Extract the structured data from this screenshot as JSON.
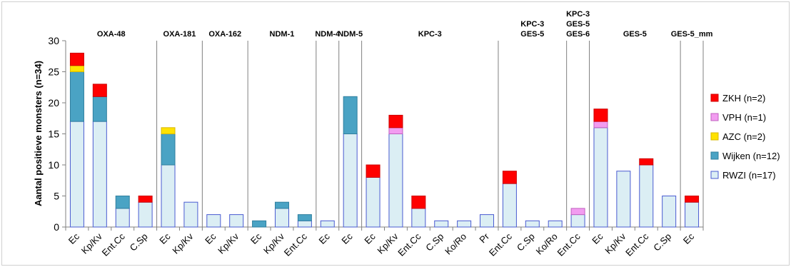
{
  "chart_data": {
    "type": "bar",
    "stacked": true,
    "ylabel": "Aantal positieve monsters (n=34)",
    "ylim": [
      0,
      30
    ],
    "yticks": [
      0,
      5,
      10,
      15,
      20,
      25,
      30
    ],
    "grid": false,
    "legend_position": "right",
    "groups": [
      {
        "label": [
          "OXA-48"
        ],
        "categories": [
          "Ec",
          "Kp/Kv",
          "Ent.Cc",
          "C.Sp"
        ]
      },
      {
        "label": [
          "OXA-181"
        ],
        "categories": [
          "Ec",
          "Kp/Kv"
        ]
      },
      {
        "label": [
          "OXA-162"
        ],
        "categories": [
          "Ec",
          "Kp/Kv"
        ]
      },
      {
        "label": [
          "NDM-1"
        ],
        "categories": [
          "Ec",
          "Kp/Kv",
          "Ent.Cc"
        ]
      },
      {
        "label": [
          "NDM-4"
        ],
        "categories": [
          "Ec"
        ]
      },
      {
        "label": [
          "NDM-5"
        ],
        "categories": [
          "Ec"
        ]
      },
      {
        "label": [
          "KPC-3"
        ],
        "categories": [
          "Ec",
          "Kp/Kv",
          "Ent.Cc",
          "C.Sp",
          "Ko/Ro",
          "Pr"
        ]
      },
      {
        "label": [
          "KPC-3",
          "GES-5"
        ],
        "categories": [
          "Ent.Cc",
          "C.Sp",
          "Ko/Ro"
        ]
      },
      {
        "label": [
          "KPC-3",
          "GES-5",
          "GES-6"
        ],
        "categories": [
          "Ent.Cc"
        ]
      },
      {
        "label": [
          "GES-5"
        ],
        "categories": [
          "Ec",
          "Kp/Kv",
          "Ent.Cc",
          "C.Sp"
        ]
      },
      {
        "label": [
          "GES-5_mm"
        ],
        "categories": [
          "Ec"
        ]
      }
    ],
    "series": [
      {
        "name": "RWZI (n=17)",
        "color": "#dbeef4",
        "stroke": "#4a5bd1",
        "values": [
          17,
          17,
          3,
          4,
          10,
          4,
          2,
          2,
          0,
          3,
          1,
          1,
          15,
          8,
          15,
          3,
          1,
          1,
          2,
          7,
          1,
          1,
          2,
          16,
          9,
          10,
          5,
          4
        ]
      },
      {
        "name": "Wijken (n=12)",
        "color": "#4aa3c4",
        "stroke": "#2f7f9e",
        "values": [
          8,
          4,
          2,
          0,
          5,
          0,
          0,
          0,
          1,
          1,
          1,
          0,
          6,
          0,
          0,
          0,
          0,
          0,
          0,
          0,
          0,
          0,
          0,
          0,
          0,
          0,
          0,
          0
        ]
      },
      {
        "name": "AZC (n=2)",
        "color": "#ffe200",
        "stroke": "#d8b800",
        "values": [
          1,
          0,
          0,
          0,
          1,
          0,
          0,
          0,
          0,
          0,
          0,
          0,
          0,
          0,
          0,
          0,
          0,
          0,
          0,
          0,
          0,
          0,
          0,
          0,
          0,
          0,
          0,
          0
        ]
      },
      {
        "name": "VPH (n=1)",
        "color": "#f29cf0",
        "stroke": "#c060c0",
        "values": [
          0,
          0,
          0,
          0,
          0,
          0,
          0,
          0,
          0,
          0,
          0,
          0,
          0,
          0,
          1,
          0,
          0,
          0,
          0,
          0,
          0,
          0,
          1,
          1,
          0,
          0,
          0,
          0
        ]
      },
      {
        "name": "ZKH (n=2)",
        "color": "#ff0000",
        "stroke": "#cc0000",
        "values": [
          2,
          2,
          0,
          1,
          0,
          0,
          0,
          0,
          0,
          0,
          0,
          0,
          0,
          2,
          2,
          2,
          0,
          0,
          0,
          2,
          0,
          0,
          0,
          2,
          0,
          1,
          0,
          1
        ]
      }
    ],
    "legend_order": [
      "ZKH (n=2)",
      "VPH (n=1)",
      "AZC (n=2)",
      "Wijken (n=12)",
      "RWZI (n=17)"
    ]
  }
}
